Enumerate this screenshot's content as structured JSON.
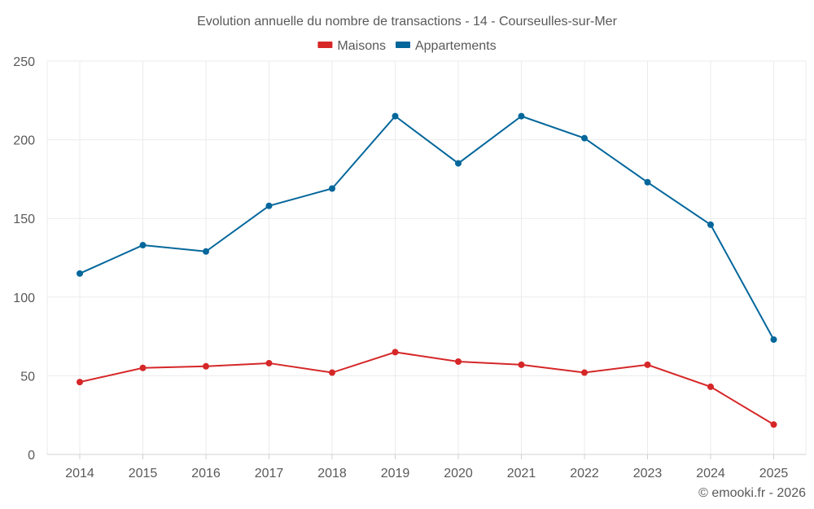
{
  "chart_data": {
    "type": "line",
    "title": "Evolution annuelle du nombre de transactions - 14 - Courseulles-sur-Mer",
    "categories": [
      "2014",
      "2015",
      "2016",
      "2017",
      "2018",
      "2019",
      "2020",
      "2021",
      "2022",
      "2023",
      "2024",
      "2025"
    ],
    "series": [
      {
        "name": "Maisons",
        "color": "#d62728",
        "values": [
          46,
          55,
          56,
          58,
          52,
          65,
          59,
          57,
          52,
          57,
          43,
          19
        ]
      },
      {
        "name": "Appartements",
        "color": "#04679b",
        "values": [
          115,
          133,
          129,
          158,
          169,
          215,
          185,
          215,
          201,
          173,
          146,
          73
        ]
      }
    ],
    "ylim": [
      0,
      250
    ],
    "yticks": [
      0,
      50,
      100,
      150,
      200,
      250
    ],
    "xlabel": "",
    "ylabel": "",
    "grid": true,
    "legend_position": "top-center"
  },
  "footer": {
    "copyright": "© emooki.fr - 2026"
  }
}
